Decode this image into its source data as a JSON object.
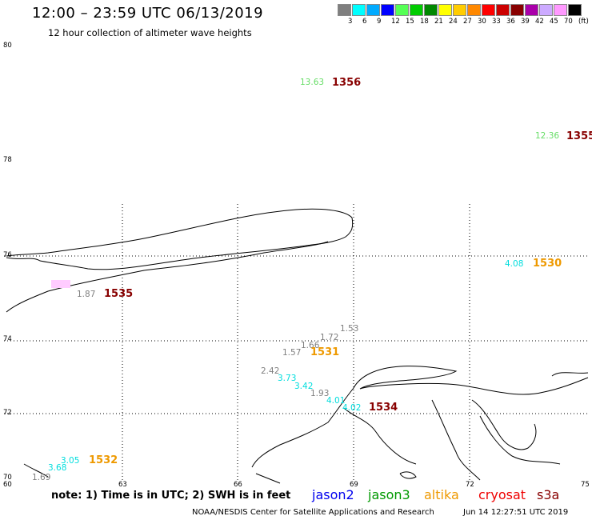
{
  "header": {
    "title": "12:00 – 23:59 UTC 06/13/2019",
    "subtitle": "12 hour collection of altimeter wave heights"
  },
  "legend": {
    "colors": [
      "#7f7f7f",
      "#00ffff",
      "#00aaff",
      "#0000ff",
      "#55ff55",
      "#00cc00",
      "#008800",
      "#ffff00",
      "#ffcc00",
      "#ff8800",
      "#ff0000",
      "#cc0000",
      "#880000",
      "#aa00aa",
      "#ccaaff",
      "#ff99ff",
      "#000000"
    ],
    "labels": [
      "3",
      "6",
      "9",
      "12",
      "15",
      "18",
      "21",
      "24",
      "27",
      "30",
      "33",
      "36",
      "39",
      "42",
      "45",
      "70",
      "(ft)"
    ]
  },
  "axes": {
    "lat_labels": [
      "80",
      "78",
      "76",
      "74",
      "72",
      "70"
    ],
    "lon_labels": [
      "60",
      "63",
      "66",
      "69",
      "72",
      "75"
    ]
  },
  "observations": [
    {
      "value": "13.63",
      "color": "#66dd66"
    },
    {
      "value": "12.36",
      "color": "#66dd66"
    },
    {
      "value": "4.08",
      "color": "#00dddd"
    },
    {
      "value": "1.87",
      "color": "#7f7f7f"
    },
    {
      "value": "1.53",
      "color": "#7f7f7f"
    },
    {
      "value": "1.72",
      "color": "#7f7f7f"
    },
    {
      "value": "1.66",
      "color": "#7f7f7f"
    },
    {
      "value": "1.57",
      "color": "#7f7f7f"
    },
    {
      "value": "2.42",
      "color": "#7f7f7f"
    },
    {
      "value": "3.73",
      "color": "#00dddd"
    },
    {
      "value": "3.42",
      "color": "#00dddd"
    },
    {
      "value": "1.93",
      "color": "#7f7f7f"
    },
    {
      "value": "4.01",
      "color": "#00dddd"
    },
    {
      "value": "4.02",
      "color": "#00dddd"
    },
    {
      "value": "3.05",
      "color": "#00dddd"
    },
    {
      "value": "3.68",
      "color": "#00dddd"
    },
    {
      "value": "1.69",
      "color": "#7f7f7f"
    }
  ],
  "passes": [
    {
      "time": "1356",
      "color": "#880000"
    },
    {
      "time": "1355",
      "color": "#880000"
    },
    {
      "time": "1530",
      "color": "#ee9900"
    },
    {
      "time": "1535",
      "color": "#880000"
    },
    {
      "time": "1531",
      "color": "#ee9900"
    },
    {
      "time": "1534",
      "color": "#880000"
    },
    {
      "time": "1532",
      "color": "#ee9900"
    }
  ],
  "footer": {
    "note": "note:  1) Time is in UTC; 2) SWH is in feet",
    "satellites": [
      {
        "name": "jason2",
        "color": "#0000ee"
      },
      {
        "name": "jason3",
        "color": "#009900"
      },
      {
        "name": "altika",
        "color": "#ee9900"
      },
      {
        "name": "cryosat",
        "color": "#ee0000"
      },
      {
        "name": "s3a",
        "color": "#880000"
      }
    ],
    "credit": "NOAA/NESDIS Center for Satellite Applications and Research",
    "timestamp": "Jun 14 12:27:51 UTC 2019"
  }
}
